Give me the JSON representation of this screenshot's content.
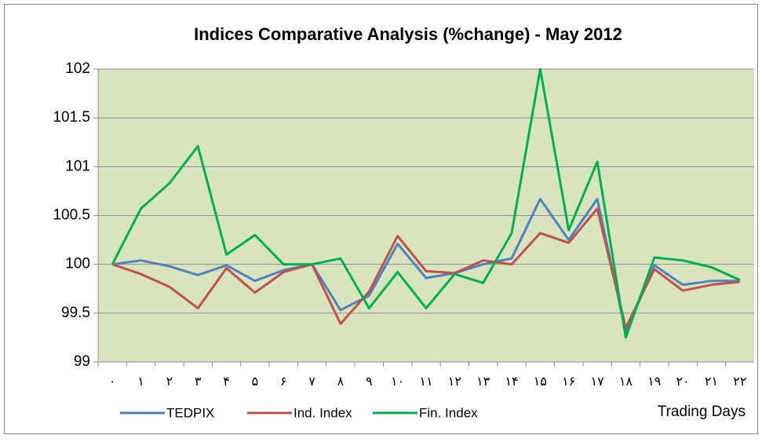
{
  "chart_data": {
    "type": "line",
    "title": "Indices Comparative Analysis (%change) - May 2012",
    "x_label": "Trading Days",
    "categories": [
      "۰",
      "۱",
      "۲",
      "۳",
      "۴",
      "۵",
      "۶",
      "۷",
      "۸",
      "۹",
      "۱۰",
      "۱۱",
      "۱۲",
      "۱۳",
      "۱۴",
      "۱۵",
      "۱۶",
      "۱۷",
      "۱۸",
      "۱۹",
      "۲۰",
      "۲۱",
      "۲۲"
    ],
    "series": [
      {
        "name": "TEDPIX",
        "color": "#4f81bd",
        "values": [
          100,
          100.04,
          99.98,
          99.89,
          99.99,
          99.83,
          99.94,
          100.0,
          99.53,
          99.68,
          100.21,
          99.86,
          99.91,
          100.0,
          100.06,
          100.67,
          100.25,
          100.67,
          99.3,
          99.99,
          99.79,
          99.83,
          99.83
        ]
      },
      {
        "name": "Ind. Index",
        "color": "#c0504d",
        "values": [
          100,
          99.9,
          99.77,
          99.55,
          99.96,
          99.71,
          99.92,
          100.0,
          99.39,
          99.72,
          100.29,
          99.93,
          99.91,
          100.04,
          100.0,
          100.32,
          100.22,
          100.57,
          99.35,
          99.95,
          99.73,
          99.79,
          99.82
        ]
      },
      {
        "name": "Fin. Index",
        "color": "#00b050",
        "values": [
          100,
          100.57,
          100.83,
          101.21,
          100.1,
          100.3,
          100.0,
          100.0,
          100.06,
          99.55,
          99.92,
          99.55,
          99.9,
          99.81,
          100.32,
          102.0,
          100.35,
          101.05,
          99.25,
          100.07,
          100.04,
          99.97,
          99.84
        ]
      }
    ],
    "ylim": [
      99,
      102
    ],
    "yticks": [
      99,
      99.5,
      100,
      100.5,
      101,
      101.5,
      102
    ],
    "grid": true,
    "legend": "bottom",
    "plot_background": "#d7e4bd"
  }
}
